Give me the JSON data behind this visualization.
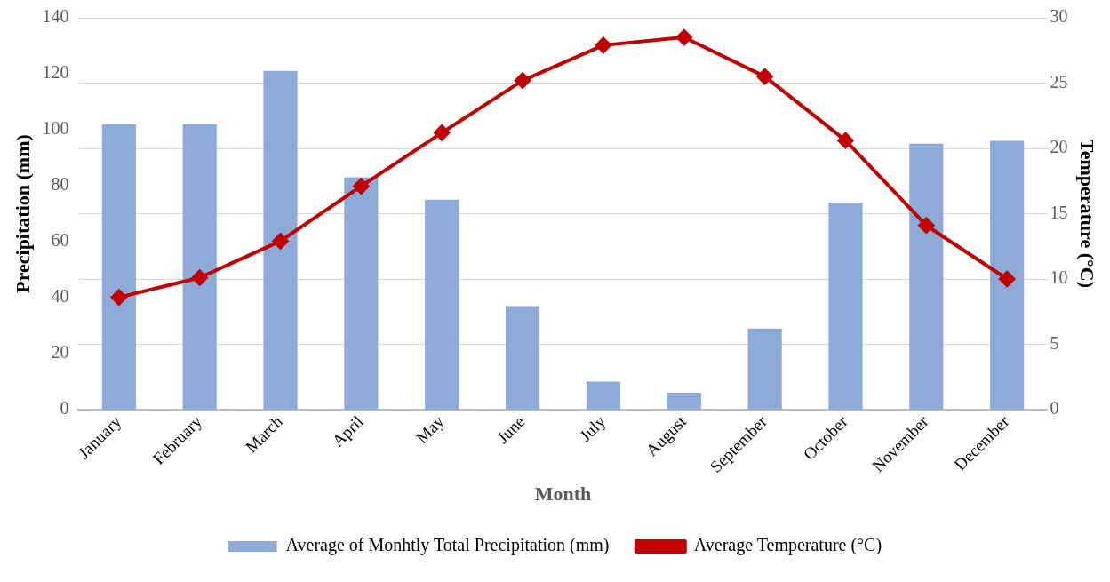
{
  "chart_data": {
    "type": "bar",
    "xlabel": "Month",
    "ylabel": "Precipitation (mm)",
    "y2label": "Temperature (°C)",
    "categories": [
      "January",
      "February",
      "March",
      "April",
      "May",
      "June",
      "July",
      "August",
      "September",
      "October",
      "November",
      "December"
    ],
    "series": [
      {
        "name": "Average of Monhtly Total Precipitation (mm)",
        "color": "#8eaad8",
        "values": [
          102,
          102,
          121,
          83,
          75,
          37,
          10,
          6,
          29,
          74,
          95,
          96
        ]
      },
      {
        "name": "Average Temperature (°C)",
        "type": "line",
        "axis": "y2",
        "color": "#c00000",
        "marker": "diamond",
        "values": [
          8.6,
          10.1,
          12.9,
          17.1,
          21.2,
          25.2,
          27.9,
          28.5,
          25.5,
          20.6,
          14.1,
          10.0
        ]
      }
    ],
    "ylim": [
      0,
      140
    ],
    "yticks": [
      0,
      20,
      40,
      60,
      80,
      100,
      120,
      140
    ],
    "y2lim": [
      0,
      30
    ],
    "y2ticks": [
      0,
      5,
      10,
      15,
      20,
      25,
      30
    ],
    "grid": "y",
    "legend": "bottom"
  }
}
